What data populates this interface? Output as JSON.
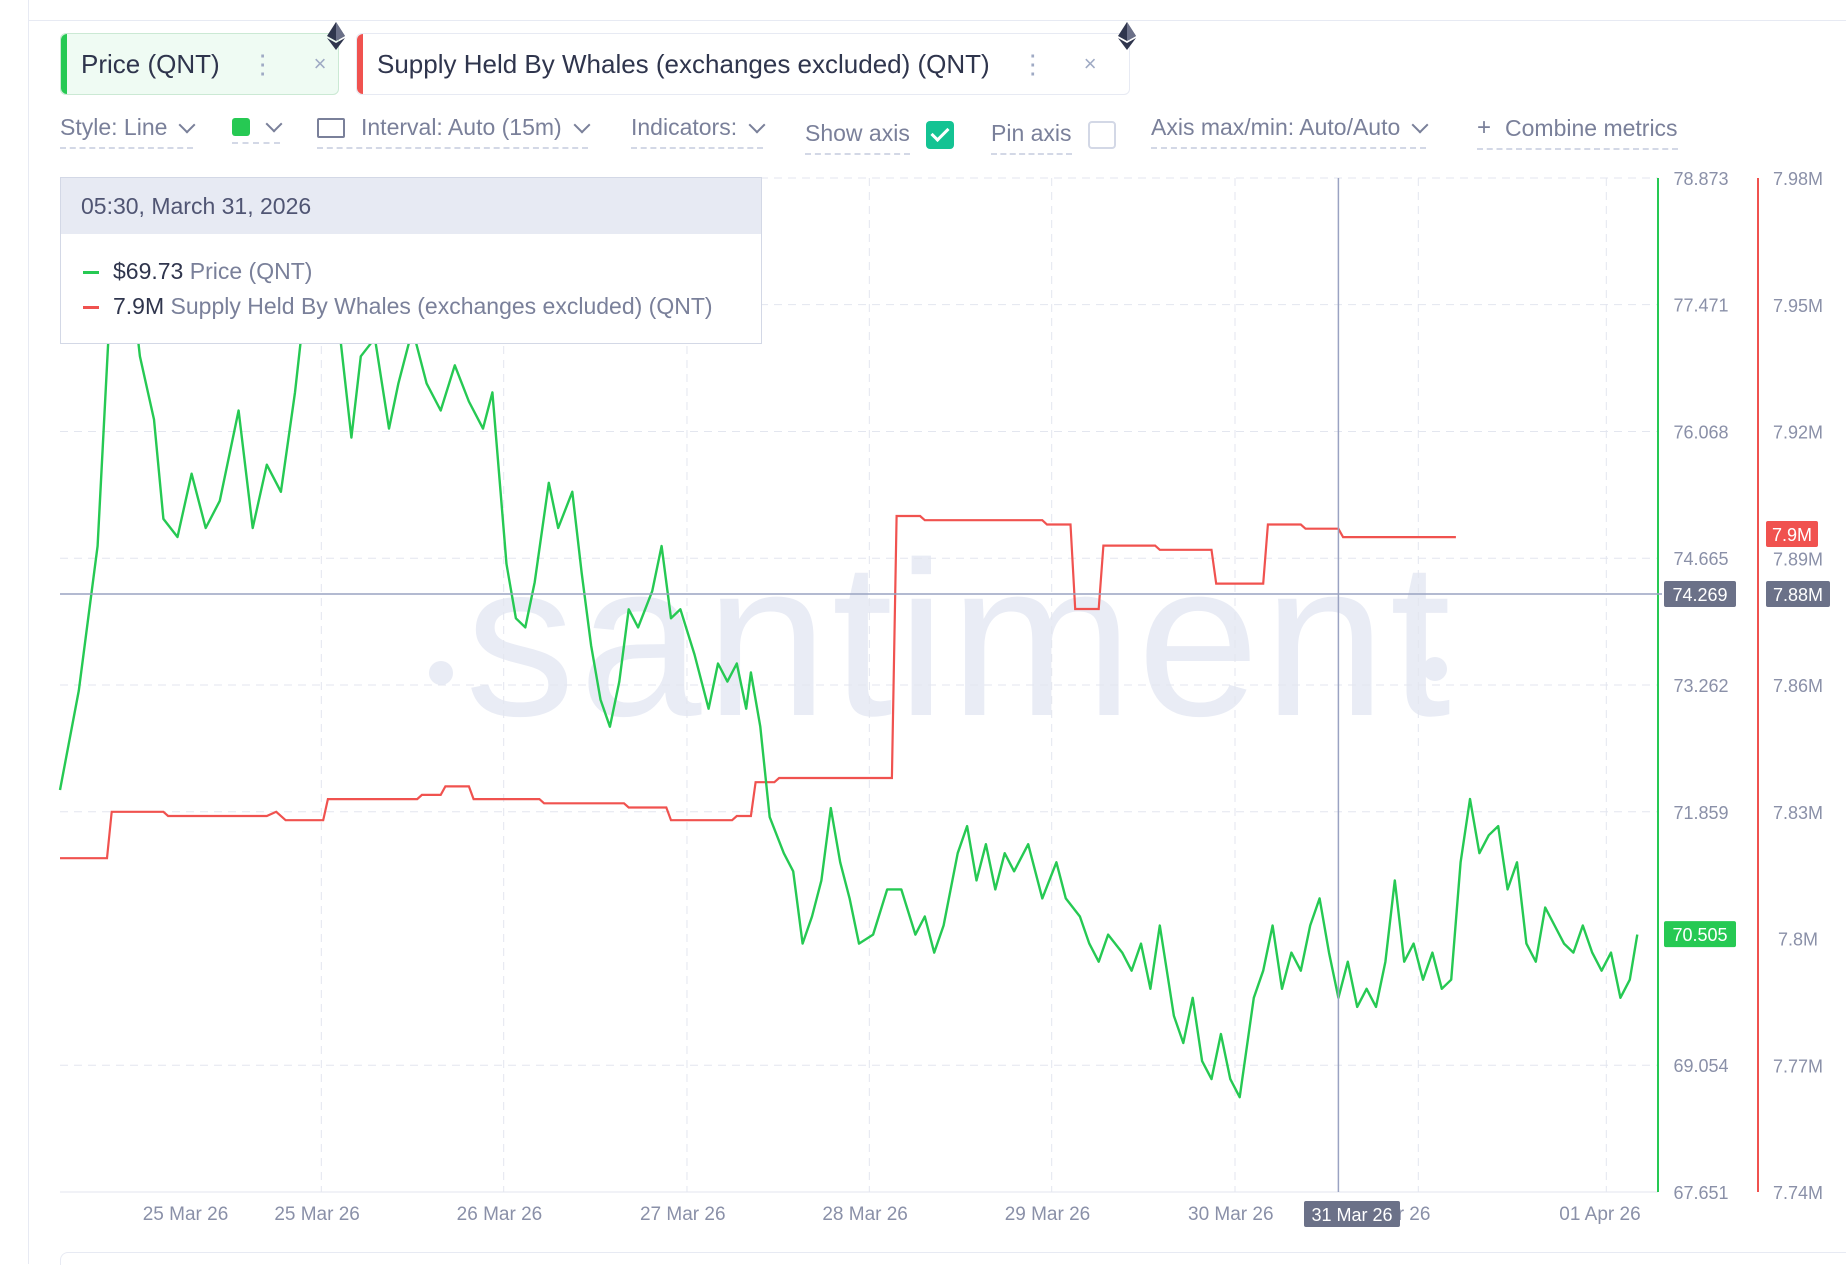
{
  "metrics": [
    {
      "label": "Price (QNT)",
      "color": "#26c953",
      "icon": "ethereum-icon",
      "menu_icon": "more-vertical-icon",
      "close": "×"
    },
    {
      "label": "Supply Held By Whales (exchanges excluded) (QNT)",
      "color": "#f0524f",
      "icon": "ethereum-icon",
      "menu_icon": "more-vertical-icon",
      "close": "×"
    }
  ],
  "toolbar": {
    "style": "Style: Line",
    "interval": "Interval: Auto (15m)",
    "indicators": "Indicators:",
    "show_axis": "Show axis",
    "show_axis_checked": true,
    "pin_axis": "Pin axis",
    "pin_axis_checked": false,
    "axis_maxmin": "Axis max/min: Auto/Auto",
    "combine": "Combine metrics",
    "combine_icon": "+"
  },
  "tooltip": {
    "date": "05:30, March 31, 2026",
    "rows": [
      {
        "value": "$69.73",
        "name": "Price (QNT)",
        "color": "#26c953"
      },
      {
        "value": "7.9M",
        "name": "Supply Held By Whales (exchanges excluded) (QNT)",
        "color": "#f0524f"
      }
    ]
  },
  "watermark": "santiment",
  "chart_data": {
    "type": "line",
    "x_tick_labels": [
      "25 Mar 26",
      "25 Mar 26",
      "26 Mar 26",
      "27 Mar 26",
      "28 Mar 26",
      "29 Mar 26",
      "30 Mar 26",
      "Mar 26",
      "01 Apr 26"
    ],
    "crosshair_x_label": "31 Mar 26",
    "crosshair_price": "74.269",
    "crosshair_whales": "7.88M",
    "series": [
      {
        "name": "Price (QNT)",
        "color": "#26c953",
        "axis_ticks": [
          "78.873",
          "77.471",
          "76.068",
          "74.665",
          "73.262",
          "71.859",
          "69.054",
          "67.651"
        ],
        "ylim": [
          67.651,
          78.873
        ],
        "last_value_badge": "70.505",
        "points": [
          [
            0.0,
            72.1
          ],
          [
            0.2,
            73.2
          ],
          [
            0.4,
            74.8
          ],
          [
            0.55,
            77.8
          ],
          [
            0.7,
            78.3
          ],
          [
            0.85,
            76.9
          ],
          [
            1.0,
            76.2
          ],
          [
            1.1,
            75.1
          ],
          [
            1.25,
            74.9
          ],
          [
            1.4,
            75.6
          ],
          [
            1.55,
            75.0
          ],
          [
            1.7,
            75.3
          ],
          [
            1.9,
            76.3
          ],
          [
            2.05,
            75.0
          ],
          [
            2.2,
            75.7
          ],
          [
            2.35,
            75.4
          ],
          [
            2.5,
            76.5
          ],
          [
            2.65,
            77.9
          ],
          [
            2.8,
            78.5
          ],
          [
            2.95,
            77.4
          ],
          [
            3.1,
            76.0
          ],
          [
            3.2,
            76.9
          ],
          [
            3.35,
            77.1
          ],
          [
            3.5,
            76.1
          ],
          [
            3.6,
            76.6
          ],
          [
            3.75,
            77.2
          ],
          [
            3.9,
            76.6
          ],
          [
            4.05,
            76.3
          ],
          [
            4.2,
            76.8
          ],
          [
            4.35,
            76.4
          ],
          [
            4.5,
            76.1
          ],
          [
            4.6,
            76.5
          ],
          [
            4.75,
            74.6
          ],
          [
            4.85,
            74.0
          ],
          [
            4.95,
            73.9
          ],
          [
            5.05,
            74.4
          ],
          [
            5.2,
            75.5
          ],
          [
            5.3,
            75.0
          ],
          [
            5.45,
            75.4
          ],
          [
            5.55,
            74.5
          ],
          [
            5.65,
            73.7
          ],
          [
            5.75,
            73.1
          ],
          [
            5.85,
            72.8
          ],
          [
            5.95,
            73.3
          ],
          [
            6.05,
            74.1
          ],
          [
            6.15,
            73.9
          ],
          [
            6.3,
            74.3
          ],
          [
            6.4,
            74.8
          ],
          [
            6.5,
            74.0
          ],
          [
            6.6,
            74.1
          ],
          [
            6.75,
            73.6
          ],
          [
            6.9,
            73.0
          ],
          [
            7.0,
            73.5
          ],
          [
            7.1,
            73.3
          ],
          [
            7.2,
            73.5
          ],
          [
            7.3,
            73.0
          ],
          [
            7.35,
            73.4
          ],
          [
            7.45,
            72.8
          ],
          [
            7.55,
            71.8
          ],
          [
            7.7,
            71.4
          ],
          [
            7.8,
            71.2
          ],
          [
            7.9,
            70.4
          ],
          [
            8.0,
            70.7
          ],
          [
            8.1,
            71.1
          ],
          [
            8.2,
            71.9
          ],
          [
            8.3,
            71.3
          ],
          [
            8.4,
            70.9
          ],
          [
            8.5,
            70.4
          ],
          [
            8.65,
            70.5
          ],
          [
            8.8,
            71.0
          ],
          [
            8.95,
            71.0
          ],
          [
            9.1,
            70.5
          ],
          [
            9.2,
            70.7
          ],
          [
            9.3,
            70.3
          ],
          [
            9.4,
            70.6
          ],
          [
            9.55,
            71.4
          ],
          [
            9.65,
            71.7
          ],
          [
            9.75,
            71.1
          ],
          [
            9.85,
            71.5
          ],
          [
            9.95,
            71.0
          ],
          [
            10.05,
            71.4
          ],
          [
            10.15,
            71.2
          ],
          [
            10.3,
            71.5
          ],
          [
            10.45,
            70.9
          ],
          [
            10.6,
            71.3
          ],
          [
            10.7,
            70.9
          ],
          [
            10.85,
            70.7
          ],
          [
            10.95,
            70.4
          ],
          [
            11.05,
            70.2
          ],
          [
            11.15,
            70.5
          ],
          [
            11.3,
            70.3
          ],
          [
            11.4,
            70.1
          ],
          [
            11.5,
            70.4
          ],
          [
            11.6,
            69.9
          ],
          [
            11.7,
            70.6
          ],
          [
            11.85,
            69.6
          ],
          [
            11.95,
            69.3
          ],
          [
            12.05,
            69.8
          ],
          [
            12.15,
            69.1
          ],
          [
            12.25,
            68.9
          ],
          [
            12.35,
            69.4
          ],
          [
            12.45,
            68.9
          ],
          [
            12.55,
            68.7
          ],
          [
            12.7,
            69.8
          ],
          [
            12.8,
            70.1
          ],
          [
            12.9,
            70.6
          ],
          [
            13.0,
            69.9
          ],
          [
            13.1,
            70.3
          ],
          [
            13.2,
            70.1
          ],
          [
            13.3,
            70.6
          ],
          [
            13.4,
            70.9
          ],
          [
            13.5,
            70.3
          ],
          [
            13.6,
            69.8
          ],
          [
            13.7,
            70.2
          ],
          [
            13.8,
            69.7
          ],
          [
            13.9,
            69.9
          ],
          [
            14.0,
            69.7
          ],
          [
            14.1,
            70.2
          ],
          [
            14.2,
            71.1
          ],
          [
            14.3,
            70.2
          ],
          [
            14.4,
            70.4
          ],
          [
            14.5,
            70.0
          ],
          [
            14.6,
            70.3
          ],
          [
            14.7,
            69.9
          ],
          [
            14.8,
            70.0
          ],
          [
            14.9,
            71.3
          ],
          [
            15.0,
            72.0
          ],
          [
            15.1,
            71.4
          ],
          [
            15.2,
            71.6
          ],
          [
            15.3,
            71.7
          ],
          [
            15.4,
            71.0
          ],
          [
            15.5,
            71.3
          ],
          [
            15.6,
            70.4
          ],
          [
            15.7,
            70.2
          ],
          [
            15.8,
            70.8
          ],
          [
            15.9,
            70.6
          ],
          [
            16.0,
            70.4
          ],
          [
            16.1,
            70.3
          ],
          [
            16.2,
            70.6
          ],
          [
            16.3,
            70.3
          ],
          [
            16.4,
            70.1
          ],
          [
            16.5,
            70.3
          ],
          [
            16.6,
            69.8
          ],
          [
            16.7,
            70.0
          ],
          [
            16.78,
            70.5
          ]
        ]
      },
      {
        "name": "Supply Held By Whales (exchanges excluded) (QNT)",
        "color": "#f0524f",
        "axis_ticks": [
          "7.98M",
          "7.95M",
          "7.92M",
          "7.89M",
          "7.86M",
          "7.83M",
          "7.8M",
          "7.77M",
          "7.74M"
        ],
        "ylim": [
          7.74,
          7.98
        ],
        "last_value_badge": "7.9M",
        "points": [
          [
            0.0,
            7.819
          ],
          [
            0.5,
            7.819
          ],
          [
            0.55,
            7.83
          ],
          [
            1.1,
            7.83
          ],
          [
            1.15,
            7.829
          ],
          [
            2.2,
            7.829
          ],
          [
            2.3,
            7.83
          ],
          [
            2.4,
            7.828
          ],
          [
            2.8,
            7.828
          ],
          [
            2.85,
            7.833
          ],
          [
            3.8,
            7.833
          ],
          [
            3.85,
            7.834
          ],
          [
            4.05,
            7.834
          ],
          [
            4.1,
            7.836
          ],
          [
            4.35,
            7.836
          ],
          [
            4.4,
            7.833
          ],
          [
            5.1,
            7.833
          ],
          [
            5.15,
            7.832
          ],
          [
            6.0,
            7.832
          ],
          [
            6.05,
            7.831
          ],
          [
            6.45,
            7.831
          ],
          [
            6.5,
            7.828
          ],
          [
            7.15,
            7.828
          ],
          [
            7.2,
            7.829
          ],
          [
            7.35,
            7.829
          ],
          [
            7.4,
            7.837
          ],
          [
            7.6,
            7.837
          ],
          [
            7.65,
            7.838
          ],
          [
            8.85,
            7.838
          ],
          [
            8.9,
            7.9
          ],
          [
            9.15,
            7.9
          ],
          [
            9.2,
            7.899
          ],
          [
            10.45,
            7.899
          ],
          [
            10.5,
            7.898
          ],
          [
            10.75,
            7.898
          ],
          [
            10.8,
            7.878
          ],
          [
            11.05,
            7.878
          ],
          [
            11.1,
            7.893
          ],
          [
            11.65,
            7.893
          ],
          [
            11.7,
            7.892
          ],
          [
            12.25,
            7.892
          ],
          [
            12.3,
            7.884
          ],
          [
            12.8,
            7.884
          ],
          [
            12.85,
            7.898
          ],
          [
            13.2,
            7.898
          ],
          [
            13.25,
            7.897
          ],
          [
            13.6,
            7.897
          ],
          [
            13.65,
            7.895
          ],
          [
            14.05,
            7.895
          ],
          [
            14.1,
            7.895
          ],
          [
            14.85,
            7.895
          ]
        ]
      }
    ],
    "grid": true,
    "legend": "tooltip top-left"
  }
}
